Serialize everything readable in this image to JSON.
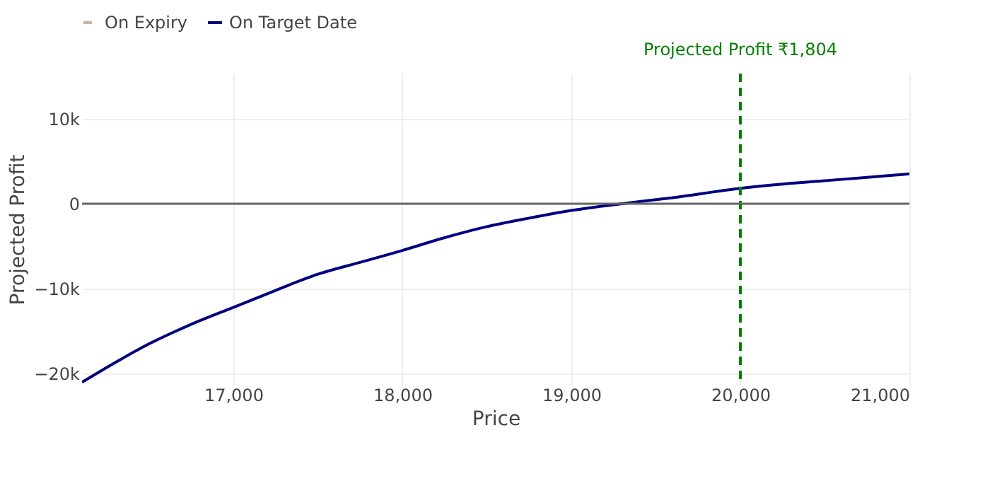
{
  "chart_data": {
    "type": "line",
    "xlabel": "Price",
    "ylabel": "Projected Profit",
    "x": [
      16105,
      16300,
      16500,
      16750,
      17000,
      17250,
      17500,
      17750,
      18000,
      18250,
      18500,
      18750,
      19000,
      19300,
      19600,
      20000,
      20250,
      20500,
      20750,
      21000
    ],
    "series": [
      {
        "name": "On Expiry",
        "color": "#c8b0a4",
        "line_style": "dashed",
        "values": [
          null,
          null,
          null,
          null,
          null,
          null,
          null,
          null,
          null,
          null,
          null,
          null,
          null,
          null,
          null,
          null,
          null,
          null,
          null,
          null
        ]
      },
      {
        "name": "On Target Date",
        "color": "#000080",
        "line_style": "solid",
        "values": [
          -21000,
          -18700,
          -16500,
          -14200,
          -12200,
          -10200,
          -8300,
          -6900,
          -5500,
          -4000,
          -2700,
          -1700,
          -800,
          0,
          700,
          1800,
          2300,
          2700,
          3100,
          3500
        ]
      }
    ],
    "xlim": [
      16105,
      21000
    ],
    "xticks": [
      {
        "value": 17000,
        "label": "17,000"
      },
      {
        "value": 18000,
        "label": "18,000"
      },
      {
        "value": 19000,
        "label": "19,000"
      },
      {
        "value": 20000,
        "label": "20,000"
      },
      {
        "value": 21000,
        "label": "21,000"
      }
    ],
    "ylim": [
      -21300,
      15300
    ],
    "yticks": [
      {
        "value": -20000,
        "label": "−20k"
      },
      {
        "value": -10000,
        "label": "−10k"
      },
      0,
      {
        "value": 10000,
        "label": "10k"
      }
    ],
    "ref_lines": [
      {
        "axis": "x",
        "value": 20000,
        "label": "Projected Profit ₹1,804",
        "color": "#008000",
        "line_style": "dashed"
      },
      {
        "axis": "y",
        "value": 0,
        "color": "#666666",
        "line_style": "solid"
      }
    ],
    "grid": true,
    "legend": "top left",
    "marker": "none"
  }
}
